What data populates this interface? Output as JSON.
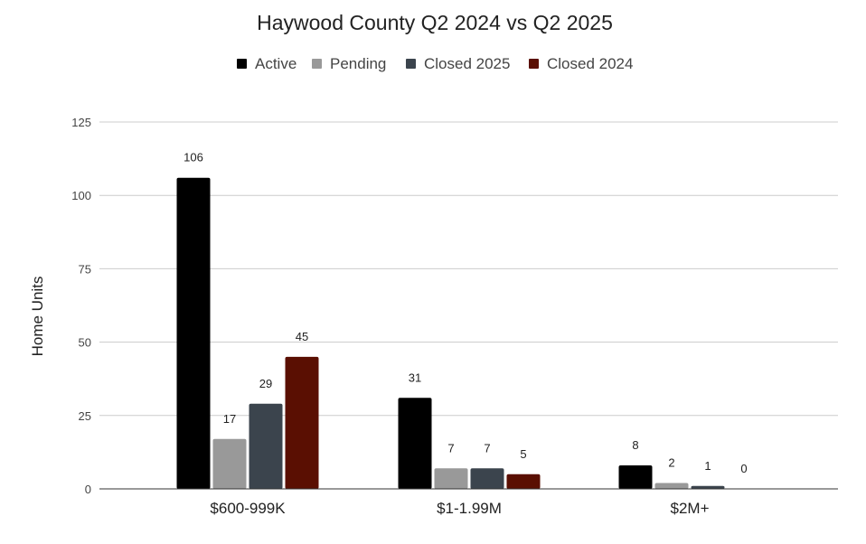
{
  "chart_data": {
    "type": "bar",
    "title": "Haywood County Q2 2024 vs Q2 2025",
    "xlabel": "",
    "ylabel": "Home Units",
    "categories": [
      "$600-999K",
      "$1-1.99M",
      "$2M+"
    ],
    "series": [
      {
        "name": "Active",
        "color": "#000000",
        "values": [
          106,
          31,
          8
        ]
      },
      {
        "name": "Pending",
        "color": "#999999",
        "values": [
          17,
          7,
          2
        ]
      },
      {
        "name": "Closed 2025",
        "color": "#3b444d",
        "values": [
          29,
          7,
          1
        ]
      },
      {
        "name": "Closed 2024",
        "color": "#5a0f02",
        "values": [
          45,
          5,
          0
        ]
      }
    ],
    "ylim": [
      0,
      125
    ],
    "yticks": [
      "0",
      "25",
      "50",
      "75",
      "100",
      "125"
    ],
    "grid": true,
    "legend_position": "top-center",
    "data_labels": true
  }
}
